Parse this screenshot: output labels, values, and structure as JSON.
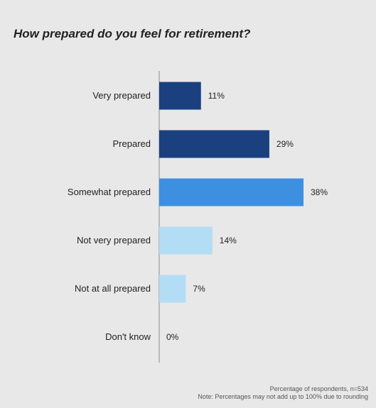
{
  "title": "How prepared do you feel for retirement?",
  "notes": {
    "base": "Percentage of respondents, n=534",
    "rounding": "Note: Percentages may not add up to 100% due to rounding"
  },
  "chart_data": {
    "type": "bar",
    "orientation": "horizontal",
    "title": "How prepared do you feel for retirement?",
    "categories": [
      "Very prepared",
      "Prepared",
      "Somewhat prepared",
      "Not very prepared",
      "Not at all prepared",
      "Don't know"
    ],
    "values": [
      11,
      29,
      38,
      14,
      7,
      0
    ],
    "value_labels": [
      "11%",
      "29%",
      "38%",
      "14%",
      "7%",
      "0%"
    ],
    "colors": [
      "#1a4080",
      "#1a4080",
      "#3d8fe0",
      "#b3ddf5",
      "#b3ddf5",
      "#b3ddf5"
    ],
    "xlim": [
      0,
      38
    ],
    "grid": false
  }
}
